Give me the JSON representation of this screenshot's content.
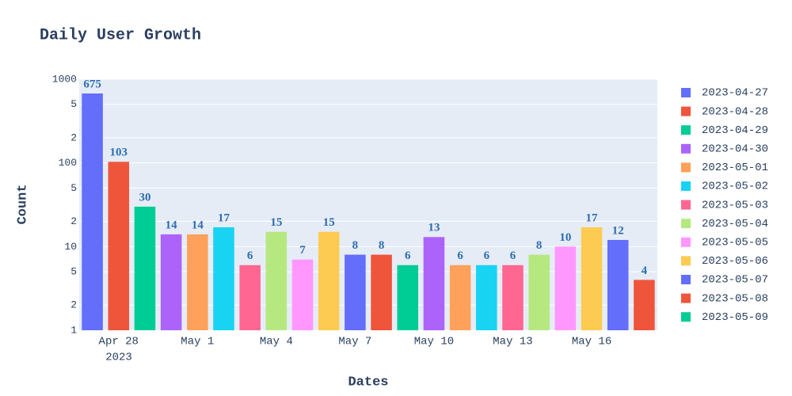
{
  "chart_data": {
    "type": "bar",
    "title": "Daily User Growth",
    "xlabel": "Dates",
    "ylabel": "Count",
    "x": [
      "2023-04-27",
      "2023-04-28",
      "2023-04-29",
      "2023-04-30",
      "2023-05-01",
      "2023-05-02",
      "2023-05-03",
      "2023-05-04",
      "2023-05-05",
      "2023-05-06",
      "2023-05-07",
      "2023-05-08",
      "2023-05-09",
      "2023-05-10",
      "2023-05-11",
      "2023-05-12",
      "2023-05-13",
      "2023-05-14",
      "2023-05-15",
      "2023-05-16",
      "2023-05-17",
      "2023-05-18"
    ],
    "values": [
      675,
      103,
      30,
      14,
      14,
      17,
      6,
      15,
      7,
      15,
      8,
      8,
      6,
      13,
      6,
      6,
      6,
      8,
      10,
      17,
      12,
      4
    ],
    "colors": [
      "#636efa",
      "#EF553B",
      "#00cc96",
      "#ab63fa",
      "#FFA15A",
      "#19d3f3",
      "#FF6692",
      "#B6E880",
      "#FF97FF",
      "#FECB52",
      "#636efa",
      "#EF553B",
      "#00cc96",
      "#ab63fa",
      "#FFA15A",
      "#19d3f3",
      "#FF6692",
      "#B6E880",
      "#FF97FF",
      "#FECB52",
      "#636efa",
      "#EF553B"
    ],
    "legend": [
      "2023-04-27",
      "2023-04-28",
      "2023-04-29",
      "2023-04-30",
      "2023-05-01",
      "2023-05-02",
      "2023-05-03",
      "2023-05-04",
      "2023-05-05",
      "2023-05-06",
      "2023-05-07",
      "2023-05-08",
      "2023-05-09"
    ],
    "xlim": [
      "2023-04-26T12:00:00Z",
      "2023-05-18T12:00:00Z"
    ],
    "xticks": [
      {
        "value": "2023-04-28",
        "label": "Apr 28"
      },
      {
        "value": "2023-05-01",
        "label": "May 1"
      },
      {
        "value": "2023-05-04",
        "label": "May 4"
      },
      {
        "value": "2023-05-07",
        "label": "May 7"
      },
      {
        "value": "2023-05-10",
        "label": "May 10"
      },
      {
        "value": "2023-05-13",
        "label": "May 13"
      },
      {
        "value": "2023-05-16",
        "label": "May 16"
      }
    ],
    "x_year_label": "2023",
    "log_y": true,
    "ylim": [
      1,
      1000
    ],
    "yticks": [
      1,
      2,
      5,
      10,
      {
        "value": 20,
        "label": "2"
      },
      {
        "value": 50,
        "label": "5"
      },
      100,
      {
        "value": 200,
        "label": "2"
      },
      {
        "value": 500,
        "label": "5"
      },
      1000
    ],
    "grid": true
  }
}
